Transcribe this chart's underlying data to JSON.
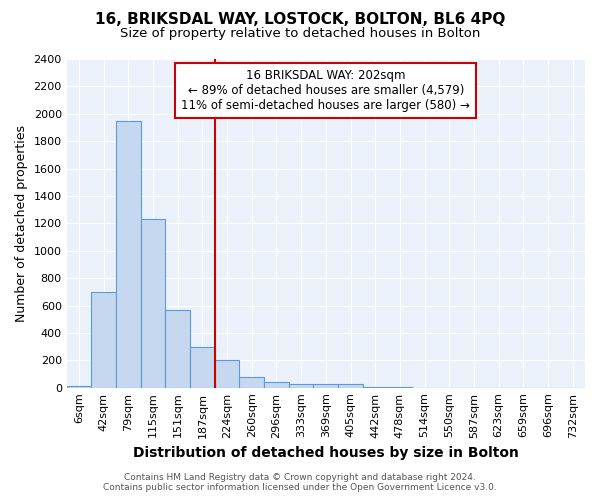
{
  "title": "16, BRIKSDAL WAY, LOSTOCK, BOLTON, BL6 4PQ",
  "subtitle": "Size of property relative to detached houses in Bolton",
  "xlabel": "Distribution of detached houses by size in Bolton",
  "ylabel": "Number of detached properties",
  "categories": [
    "6sqm",
    "42sqm",
    "79sqm",
    "115sqm",
    "151sqm",
    "187sqm",
    "224sqm",
    "260sqm",
    "296sqm",
    "333sqm",
    "369sqm",
    "405sqm",
    "442sqm",
    "478sqm",
    "514sqm",
    "550sqm",
    "587sqm",
    "623sqm",
    "659sqm",
    "696sqm",
    "732sqm"
  ],
  "values": [
    15,
    700,
    1950,
    1230,
    570,
    300,
    200,
    80,
    45,
    30,
    30,
    30,
    5,
    5,
    0,
    0,
    0,
    0,
    0,
    0,
    0
  ],
  "bar_color": "#c5d8ef",
  "bar_edge_color": "#5b9bd5",
  "vline_color": "#cc0000",
  "vline_pos": 6.0,
  "annotation_text": "16 BRIKSDAL WAY: 202sqm\n← 89% of detached houses are smaller (4,579)\n11% of semi-detached houses are larger (580) →",
  "annotation_box_facecolor": "#ffffff",
  "annotation_box_edgecolor": "#cc0000",
  "ylim": [
    0,
    2400
  ],
  "yticks": [
    0,
    200,
    400,
    600,
    800,
    1000,
    1200,
    1400,
    1600,
    1800,
    2000,
    2200,
    2400
  ],
  "footer_line1": "Contains HM Land Registry data © Crown copyright and database right 2024.",
  "footer_line2": "Contains public sector information licensed under the Open Government Licence v3.0.",
  "fig_bg_color": "#ffffff",
  "plot_bg_color": "#eaf1fa",
  "title_fontsize": 11,
  "subtitle_fontsize": 9.5,
  "tick_fontsize": 8,
  "ylabel_fontsize": 9,
  "xlabel_fontsize": 10,
  "annotation_fontsize": 8.5,
  "footer_fontsize": 6.5
}
